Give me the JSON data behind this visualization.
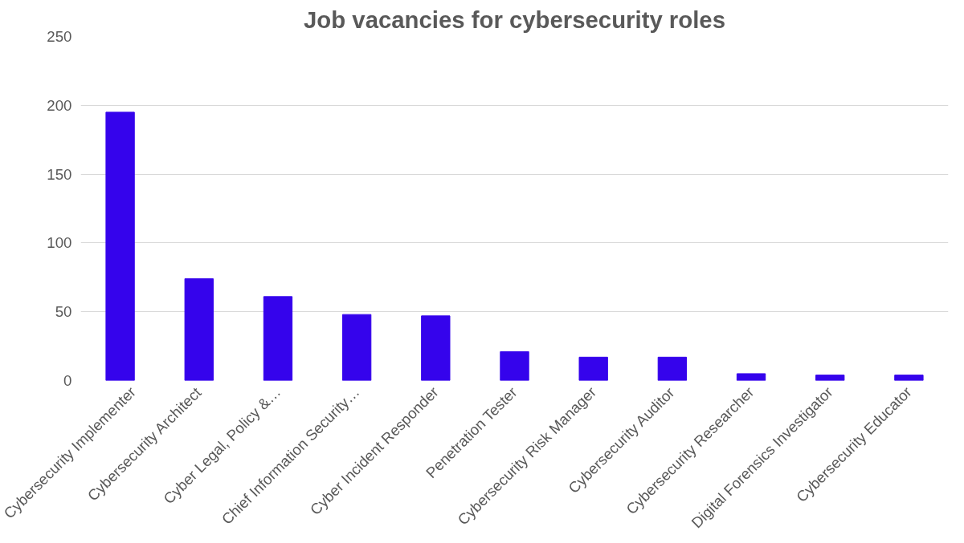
{
  "chart_data": {
    "type": "bar",
    "title": "Job vacancies for cybersecurity roles",
    "categories": [
      "Cybersecurity Implementer",
      "Cybersecurity Architect",
      "Cyber Legal, Policy &…",
      "Chief Information Security…",
      "Cyber Incident Responder",
      "Penetration Tester",
      "Cybersecurity Risk Manager",
      "Cybersecurity Auditor",
      "Cybersecurity Researcher",
      "Digital Forensics Investigator",
      "Cybersecurity Educator"
    ],
    "values": [
      195,
      74,
      61,
      48,
      47,
      21,
      17,
      17,
      5,
      4,
      4
    ],
    "color": "#3503ec",
    "ylim": [
      0,
      250
    ],
    "yticks": [
      0,
      50,
      100,
      150,
      200,
      250
    ],
    "grid": "y"
  }
}
